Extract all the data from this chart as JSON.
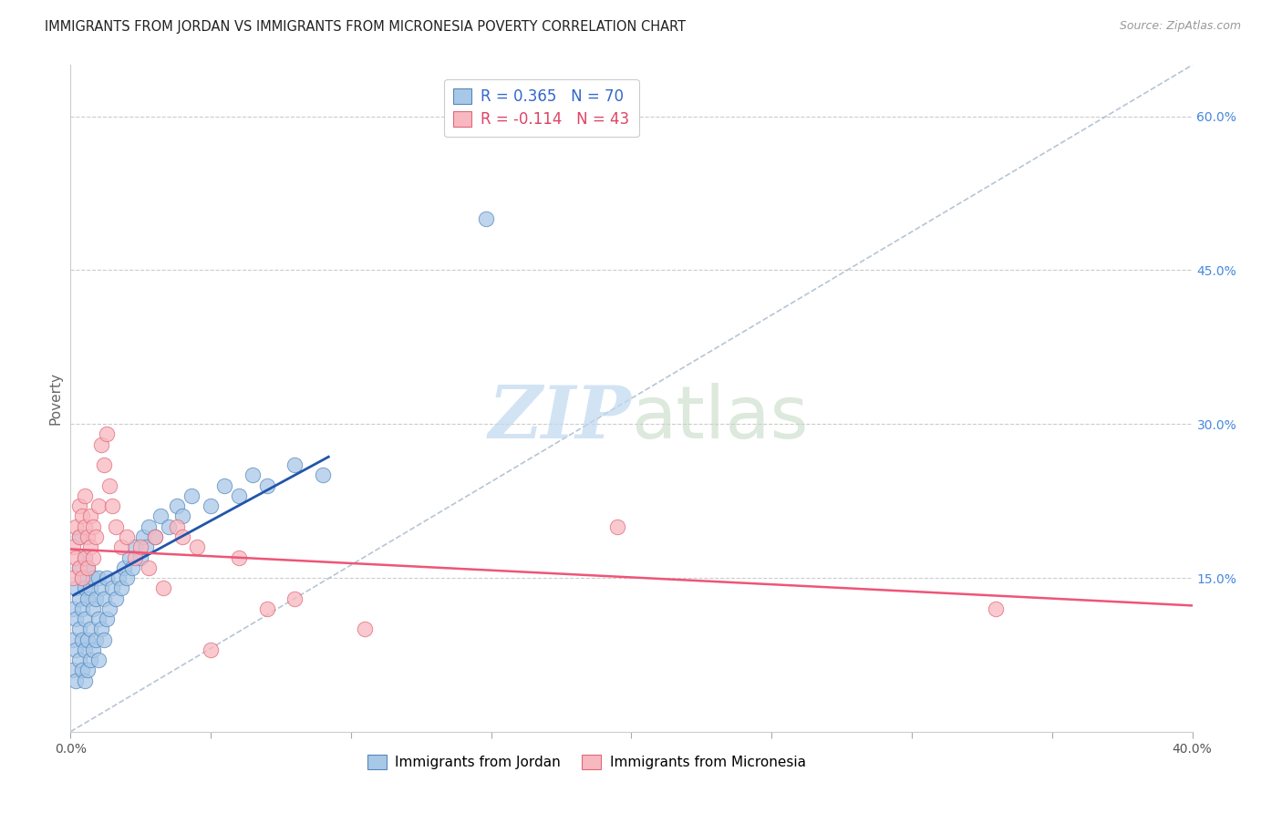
{
  "title": "IMMIGRANTS FROM JORDAN VS IMMIGRANTS FROM MICRONESIA POVERTY CORRELATION CHART",
  "source": "Source: ZipAtlas.com",
  "ylabel": "Poverty",
  "xlim": [
    0.0,
    0.4
  ],
  "ylim": [
    0.0,
    0.65
  ],
  "xtick_positions": [
    0.0,
    0.05,
    0.1,
    0.15,
    0.2,
    0.25,
    0.3,
    0.35,
    0.4
  ],
  "ytick_positions": [
    0.15,
    0.3,
    0.45,
    0.6
  ],
  "ytick_labels": [
    "15.0%",
    "30.0%",
    "45.0%",
    "60.0%"
  ],
  "grid_color": "#cccccc",
  "background_color": "#ffffff",
  "jordan_color": "#a8c8e8",
  "jordan_edge": "#5588bb",
  "micronesia_color": "#f8b8c0",
  "micronesia_edge": "#e06878",
  "jordan_line_color": "#2255aa",
  "micronesia_line_color": "#ee5577",
  "diagonal_color": "#aabbcc",
  "jordan_label": "Immigrants from Jordan",
  "micronesia_label": "Immigrants from Micronesia",
  "legend_r1": "R = 0.365",
  "legend_n1": "N = 70",
  "legend_r2": "R = -0.114",
  "legend_n2": "N = 43",
  "legend_r1_color": "#3366cc",
  "legend_r2_color": "#dd4466",
  "jordan_line_x": [
    0.001,
    0.092
  ],
  "jordan_line_y": [
    0.133,
    0.268
  ],
  "micronesia_line_x": [
    0.0,
    0.4
  ],
  "micronesia_line_y": [
    0.178,
    0.123
  ],
  "jordan_points_x": [
    0.001,
    0.001,
    0.001,
    0.002,
    0.002,
    0.002,
    0.002,
    0.003,
    0.003,
    0.003,
    0.003,
    0.003,
    0.004,
    0.004,
    0.004,
    0.004,
    0.005,
    0.005,
    0.005,
    0.005,
    0.005,
    0.006,
    0.006,
    0.006,
    0.006,
    0.007,
    0.007,
    0.007,
    0.008,
    0.008,
    0.008,
    0.009,
    0.009,
    0.01,
    0.01,
    0.01,
    0.011,
    0.011,
    0.012,
    0.012,
    0.013,
    0.013,
    0.014,
    0.015,
    0.016,
    0.017,
    0.018,
    0.019,
    0.02,
    0.021,
    0.022,
    0.023,
    0.025,
    0.026,
    0.027,
    0.028,
    0.03,
    0.032,
    0.035,
    0.038,
    0.04,
    0.043,
    0.05,
    0.055,
    0.06,
    0.065,
    0.07,
    0.08,
    0.148,
    0.09
  ],
  "jordan_points_y": [
    0.06,
    0.09,
    0.12,
    0.05,
    0.08,
    0.11,
    0.14,
    0.07,
    0.1,
    0.13,
    0.16,
    0.19,
    0.06,
    0.09,
    0.12,
    0.15,
    0.05,
    0.08,
    0.11,
    0.14,
    0.17,
    0.06,
    0.09,
    0.13,
    0.16,
    0.07,
    0.1,
    0.14,
    0.08,
    0.12,
    0.15,
    0.09,
    0.13,
    0.07,
    0.11,
    0.15,
    0.1,
    0.14,
    0.09,
    0.13,
    0.11,
    0.15,
    0.12,
    0.14,
    0.13,
    0.15,
    0.14,
    0.16,
    0.15,
    0.17,
    0.16,
    0.18,
    0.17,
    0.19,
    0.18,
    0.2,
    0.19,
    0.21,
    0.2,
    0.22,
    0.21,
    0.23,
    0.22,
    0.24,
    0.23,
    0.25,
    0.24,
    0.26,
    0.5,
    0.25
  ],
  "micronesia_points_x": [
    0.001,
    0.001,
    0.002,
    0.002,
    0.003,
    0.003,
    0.003,
    0.004,
    0.004,
    0.005,
    0.005,
    0.005,
    0.006,
    0.006,
    0.007,
    0.007,
    0.008,
    0.008,
    0.009,
    0.01,
    0.011,
    0.012,
    0.013,
    0.014,
    0.015,
    0.016,
    0.018,
    0.02,
    0.023,
    0.025,
    0.028,
    0.03,
    0.033,
    0.038,
    0.04,
    0.045,
    0.05,
    0.06,
    0.07,
    0.08,
    0.105,
    0.195,
    0.33
  ],
  "micronesia_points_y": [
    0.15,
    0.18,
    0.17,
    0.2,
    0.16,
    0.19,
    0.22,
    0.15,
    0.21,
    0.17,
    0.2,
    0.23,
    0.16,
    0.19,
    0.18,
    0.21,
    0.17,
    0.2,
    0.19,
    0.22,
    0.28,
    0.26,
    0.29,
    0.24,
    0.22,
    0.2,
    0.18,
    0.19,
    0.17,
    0.18,
    0.16,
    0.19,
    0.14,
    0.2,
    0.19,
    0.18,
    0.08,
    0.17,
    0.12,
    0.13,
    0.1,
    0.2,
    0.12
  ]
}
